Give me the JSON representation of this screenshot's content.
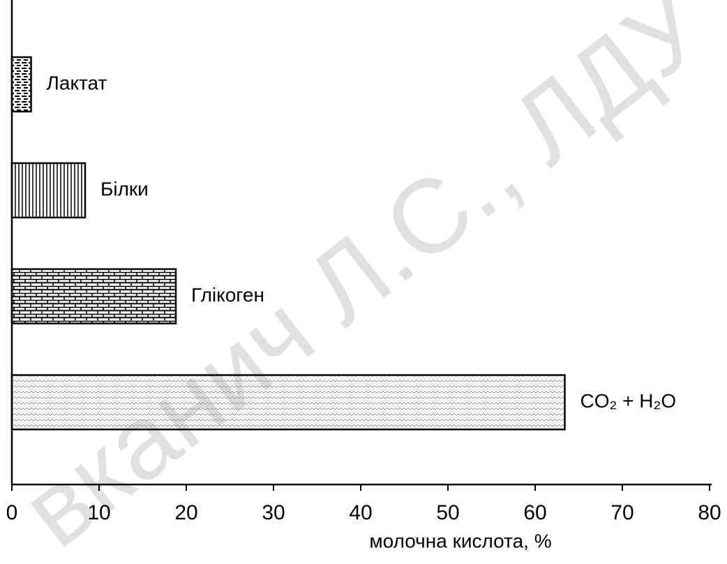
{
  "chart_data": {
    "type": "barh",
    "categories": [
      "Лактат",
      "Білки",
      "Глікоген",
      "CO₂ + H₂O"
    ],
    "values": [
      2.2,
      8.4,
      18.8,
      63.4
    ],
    "patterns": [
      "dashes",
      "vertical",
      "brick",
      "dots"
    ],
    "xlabel": "молочна кислота, %",
    "xlim": [
      0,
      80
    ],
    "xticks": [
      0,
      10,
      20,
      30,
      40,
      50,
      60,
      70,
      80
    ],
    "annotation": "вканич Л.С., ЛДУ"
  }
}
